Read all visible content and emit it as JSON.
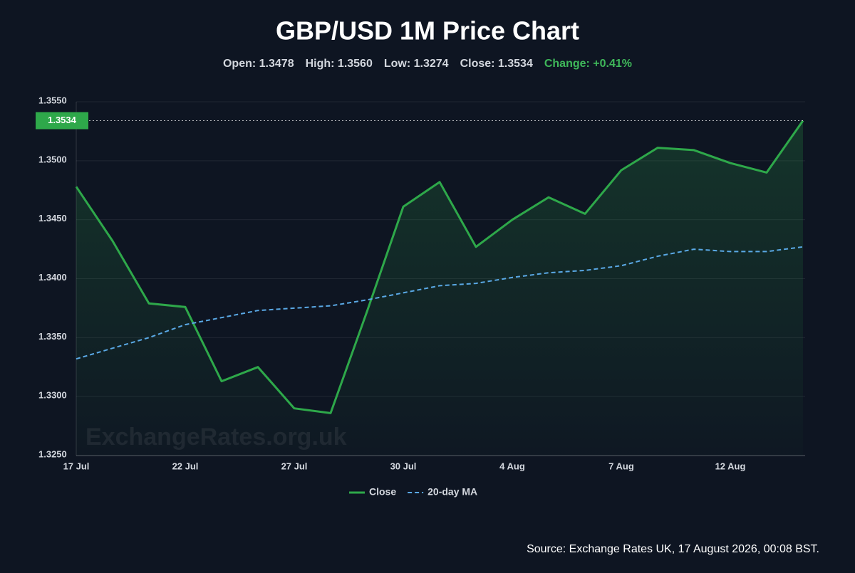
{
  "chart_data": {
    "type": "line",
    "title": "GBP/USD 1M Price Chart",
    "stats": [
      {
        "text": "Open: 1.3478",
        "color": "#d3d7de"
      },
      {
        "text": "High: 1.3560",
        "color": "#d3d7de"
      },
      {
        "text": "Low: 1.3274",
        "color": "#d3d7de"
      },
      {
        "text": "Close: 1.3534",
        "color": "#d3d7de"
      },
      {
        "text": "Change: +0.41%",
        "color": "#3fb85a"
      }
    ],
    "categories": [
      "17 Jul",
      null,
      null,
      "22 Jul",
      null,
      null,
      "27 Jul",
      null,
      null,
      "30 Jul",
      null,
      null,
      "4 Aug",
      null,
      null,
      "7 Aug",
      null,
      null,
      "12 Aug",
      null,
      null
    ],
    "series": [
      {
        "name": "Close",
        "color": "#2ea84a",
        "fill": true,
        "dashed": false,
        "values": [
          1.3478,
          1.3432,
          1.3379,
          1.3376,
          1.3313,
          1.3325,
          1.329,
          1.3286,
          1.3372,
          1.3461,
          1.3482,
          1.3427,
          1.345,
          1.3469,
          1.3455,
          1.3492,
          1.3511,
          1.3509,
          1.3498,
          1.349,
          1.3534
        ],
        "last_label": "1.3534"
      },
      {
        "name": "20-day MA",
        "color": "#5aa9e6",
        "fill": false,
        "dashed": true,
        "values": [
          1.3332,
          1.3341,
          1.335,
          1.3361,
          1.3367,
          1.3373,
          1.3375,
          1.3377,
          1.3382,
          1.3388,
          1.3394,
          1.3396,
          1.3401,
          1.3405,
          1.3407,
          1.3411,
          1.3419,
          1.3425,
          1.3423,
          1.3423,
          1.3427
        ]
      }
    ],
    "ylim": [
      1.325,
      1.355
    ],
    "yticks": [
      {
        "value": 1.325,
        "label": "1.3250"
      },
      {
        "value": 1.33,
        "label": "1.3300"
      },
      {
        "value": 1.335,
        "label": "1.3350"
      },
      {
        "value": 1.34,
        "label": "1.3400"
      },
      {
        "value": 1.345,
        "label": "1.3450"
      },
      {
        "value": 1.35,
        "label": "1.3500"
      },
      {
        "value": 1.355,
        "label": "1.3550"
      }
    ],
    "grid": true,
    "watermark": "ExchangeRates.org.uk",
    "source": "Source: Exchange Rates UK, 17 August 2026, 00:08 BST."
  }
}
